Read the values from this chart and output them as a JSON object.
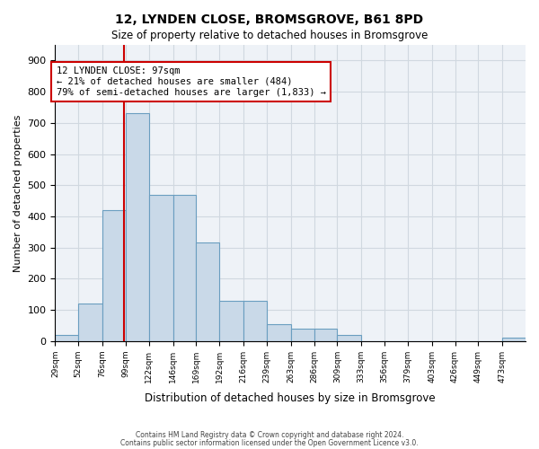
{
  "title_line1": "12, LYNDEN CLOSE, BROMSGROVE, B61 8PD",
  "title_line2": "Size of property relative to detached houses in Bromsgrove",
  "xlabel": "Distribution of detached houses by size in Bromsgrove",
  "ylabel": "Number of detached properties",
  "footnote1": "Contains HM Land Registry data © Crown copyright and database right 2024.",
  "footnote2": "Contains public sector information licensed under the Open Government Licence v3.0.",
  "bar_edges": [
    29,
    52,
    76,
    99,
    122,
    146,
    169,
    192,
    216,
    239,
    263,
    286,
    309,
    333,
    356,
    379,
    403,
    426,
    449,
    473,
    496
  ],
  "bar_heights": [
    20,
    120,
    420,
    730,
    470,
    470,
    315,
    130,
    130,
    55,
    40,
    40,
    20,
    0,
    0,
    0,
    0,
    0,
    0,
    10
  ],
  "bar_color": "#c9d9e8",
  "bar_edge_color": "#6a9ec0",
  "grid_color": "#d0d8e0",
  "bg_color": "#eef2f7",
  "property_size": 97,
  "vline_color": "#cc0000",
  "annotation_text": "12 LYNDEN CLOSE: 97sqm\n← 21% of detached houses are smaller (484)\n79% of semi-detached houses are larger (1,833) →",
  "annotation_box_color": "#ffffff",
  "annotation_box_edge": "#cc0000",
  "ylim": [
    0,
    950
  ],
  "yticks": [
    0,
    100,
    200,
    300,
    400,
    500,
    600,
    700,
    800,
    900
  ]
}
